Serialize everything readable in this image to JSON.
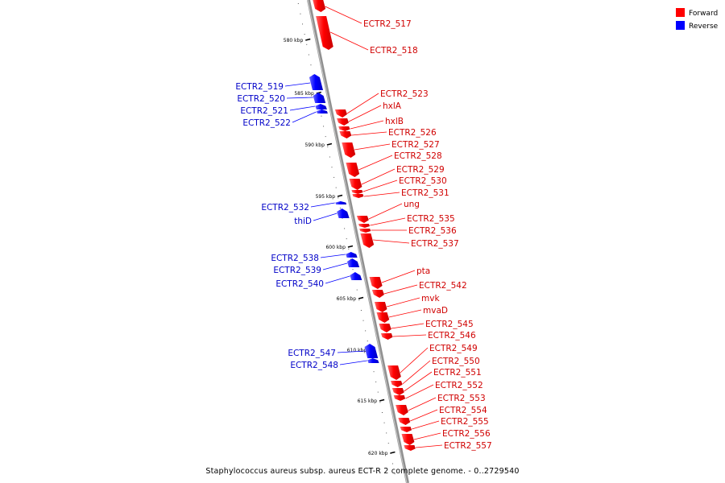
{
  "legend": {
    "forward_label": "Forward",
    "reverse_label": "Reverse",
    "forward_color": "#ff0000",
    "reverse_color": "#0000ff"
  },
  "caption": "Staphylococcus aureus subsp. aureus ECT-R 2 complete genome. - 0..2729540",
  "ticks": [
    "580 kbp",
    "585 kbp",
    "590 kbp",
    "595 kbp",
    "600 kbp",
    "605 kbp",
    "610 kbp",
    "615 kbp",
    "620 kbp"
  ],
  "genes": [
    {
      "name": "ECTR2_517",
      "strand": "forward"
    },
    {
      "name": "ECTR2_518",
      "strand": "forward"
    },
    {
      "name": "ECTR2_519",
      "strand": "reverse"
    },
    {
      "name": "ECTR2_520",
      "strand": "reverse"
    },
    {
      "name": "ECTR2_521",
      "strand": "reverse"
    },
    {
      "name": "ECTR2_522",
      "strand": "reverse"
    },
    {
      "name": "ECTR2_523",
      "strand": "forward"
    },
    {
      "name": "hxlA",
      "strand": "forward"
    },
    {
      "name": "hxlB",
      "strand": "forward"
    },
    {
      "name": "ECTR2_526",
      "strand": "forward"
    },
    {
      "name": "ECTR2_527",
      "strand": "forward"
    },
    {
      "name": "ECTR2_528",
      "strand": "forward"
    },
    {
      "name": "ECTR2_529",
      "strand": "forward"
    },
    {
      "name": "ECTR2_530",
      "strand": "forward"
    },
    {
      "name": "ECTR2_531",
      "strand": "forward"
    },
    {
      "name": "ECTR2_532",
      "strand": "reverse"
    },
    {
      "name": "thiD",
      "strand": "reverse"
    },
    {
      "name": "ung",
      "strand": "forward"
    },
    {
      "name": "ECTR2_535",
      "strand": "forward"
    },
    {
      "name": "ECTR2_536",
      "strand": "forward"
    },
    {
      "name": "ECTR2_537",
      "strand": "forward"
    },
    {
      "name": "ECTR2_538",
      "strand": "reverse"
    },
    {
      "name": "ECTR2_539",
      "strand": "reverse"
    },
    {
      "name": "ECTR2_540",
      "strand": "reverse"
    },
    {
      "name": "pta",
      "strand": "forward"
    },
    {
      "name": "ECTR2_542",
      "strand": "forward"
    },
    {
      "name": "mvk",
      "strand": "forward"
    },
    {
      "name": "mvaD",
      "strand": "forward"
    },
    {
      "name": "ECTR2_545",
      "strand": "forward"
    },
    {
      "name": "ECTR2_546",
      "strand": "forward"
    },
    {
      "name": "ECTR2_547",
      "strand": "reverse"
    },
    {
      "name": "ECTR2_548",
      "strand": "reverse"
    },
    {
      "name": "ECTR2_549",
      "strand": "forward"
    },
    {
      "name": "ECTR2_550",
      "strand": "forward"
    },
    {
      "name": "ECTR2_551",
      "strand": "forward"
    },
    {
      "name": "ECTR2_552",
      "strand": "forward"
    },
    {
      "name": "ECTR2_553",
      "strand": "forward"
    },
    {
      "name": "ECTR2_554",
      "strand": "forward"
    },
    {
      "name": "ECTR2_555",
      "strand": "forward"
    },
    {
      "name": "ECTR2_556",
      "strand": "forward"
    },
    {
      "name": "ECTR2_557",
      "strand": "forward"
    }
  ]
}
